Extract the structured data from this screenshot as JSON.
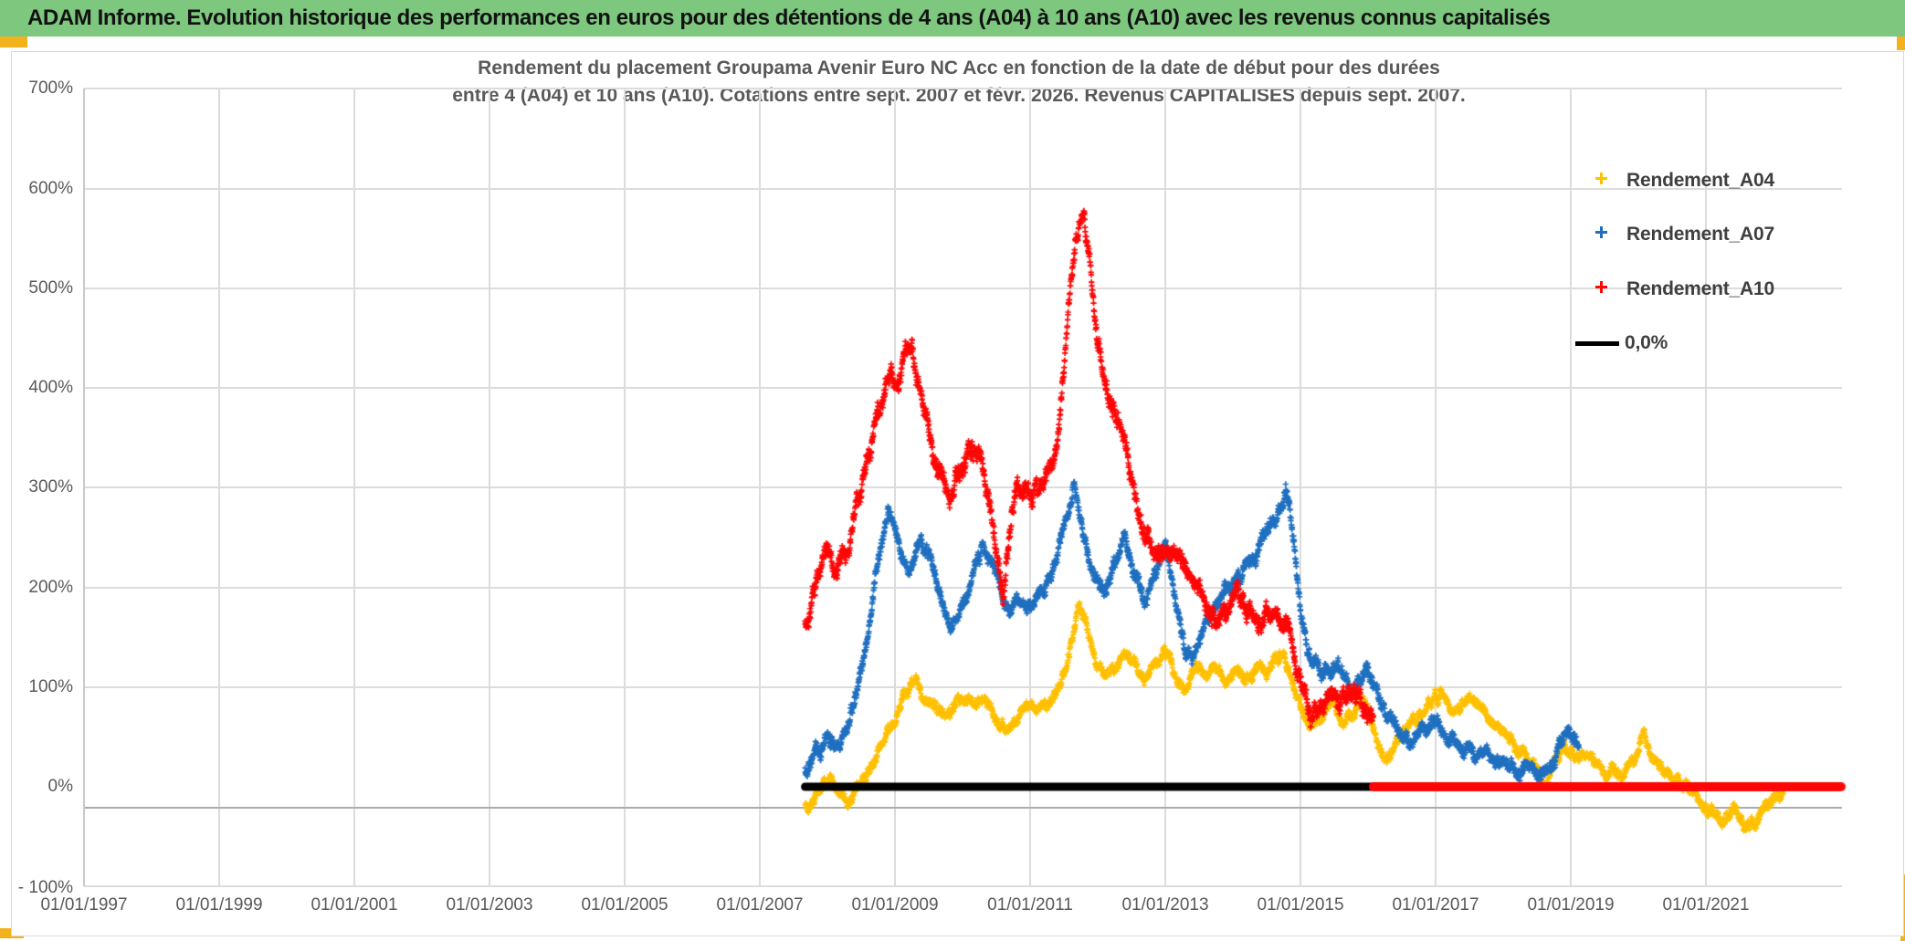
{
  "page": {
    "header_title": "ADAM Informe. Evolution historique des performances en euros pour des détentions de 4 ans (A04) à 10 ans (A10) avec les revenus connus capitalisés",
    "header_bg": "#7dc77f",
    "accent_color": "#f2b21e"
  },
  "chart": {
    "title_line1": "Rendement du placement Groupama Avenir Euro NC Acc en fonction de la date de début pour des durées",
    "title_line2": "entre 4 (A04) et 10 ans (A10). Cotations entre sept. 2007 et févr. 2026. Revenus CAPITALISES depuis sept. 2007.",
    "legend": [
      {
        "label": "Rendement_A04",
        "marker": "plus",
        "color": "#FFC000"
      },
      {
        "label": "Rendement_A07",
        "marker": "plus",
        "color": "#1f6fc0"
      },
      {
        "label": "Rendement_A10",
        "marker": "plus",
        "color": "#fe0606"
      },
      {
        "label": "0,0%",
        "marker": "line",
        "color": "#000000"
      }
    ]
  },
  "chart_data": {
    "type": "scatter",
    "title": "Rendement du placement Groupama Avenir Euro NC Acc en fonction de la date de début pour des durées entre 4 (A04) et 10 ans (A10). Cotations entre sept. 2007 et févr. 2026. Revenus CAPITALISES depuis sept. 2007.",
    "xlabel": "",
    "ylabel": "",
    "x_axis": {
      "tick_labels": [
        "01/01/1997",
        "01/01/1999",
        "01/01/2001",
        "01/01/2003",
        "01/01/2005",
        "01/01/2007",
        "01/01/2009",
        "01/01/2011",
        "01/01/2013",
        "01/01/2015",
        "01/01/2017",
        "01/01/2019",
        "01/01/2021"
      ],
      "tick_years": [
        1997,
        1999,
        2001,
        2003,
        2005,
        2007,
        2009,
        2011,
        2013,
        2015,
        2017,
        2019,
        2021
      ],
      "range_years": [
        1997,
        2023.03
      ],
      "grid": true
    },
    "y_axis": {
      "tick_labels": [
        "700%",
        "600%",
        "500%",
        "400%",
        "300%",
        "200%",
        "100%",
        "0%",
        "- 100%"
      ],
      "tick_values": [
        700,
        600,
        500,
        400,
        300,
        200,
        100,
        0,
        -100
      ],
      "range": [
        -100,
        700
      ],
      "unit": "percent",
      "gridline_values": [
        700,
        600,
        500,
        400,
        300,
        200,
        100,
        -100
      ]
    },
    "legend_position": "right-top",
    "series": [
      {
        "name": "Rendement_A04",
        "color": "#FFC000",
        "marker": "plus",
        "points_per_year": 260,
        "scatter_amp": 9,
        "anchors": [
          [
            2007.67,
            -18
          ],
          [
            2007.8,
            -10
          ],
          [
            2007.95,
            5
          ],
          [
            2008.05,
            8
          ],
          [
            2008.15,
            -5
          ],
          [
            2008.3,
            -14
          ],
          [
            2008.45,
            2
          ],
          [
            2008.6,
            18
          ],
          [
            2008.75,
            38
          ],
          [
            2008.9,
            55
          ],
          [
            2009.05,
            75
          ],
          [
            2009.2,
            95
          ],
          [
            2009.3,
            107
          ],
          [
            2009.45,
            88
          ],
          [
            2009.6,
            78
          ],
          [
            2009.75,
            72
          ],
          [
            2009.9,
            84
          ],
          [
            2010.05,
            80
          ],
          [
            2010.2,
            87
          ],
          [
            2010.35,
            90
          ],
          [
            2010.5,
            68
          ],
          [
            2010.65,
            52
          ],
          [
            2010.8,
            66
          ],
          [
            2010.95,
            76
          ],
          [
            2011.1,
            80
          ],
          [
            2011.25,
            87
          ],
          [
            2011.4,
            98
          ],
          [
            2011.55,
            122
          ],
          [
            2011.7,
            175
          ],
          [
            2011.8,
            170
          ],
          [
            2011.95,
            125
          ],
          [
            2012.1,
            108
          ],
          [
            2012.25,
            115
          ],
          [
            2012.4,
            140
          ],
          [
            2012.55,
            128
          ],
          [
            2012.7,
            112
          ],
          [
            2012.85,
            122
          ],
          [
            2013.0,
            133
          ],
          [
            2013.15,
            108
          ],
          [
            2013.3,
            97
          ],
          [
            2013.45,
            118
          ],
          [
            2013.6,
            112
          ],
          [
            2013.75,
            118
          ],
          [
            2013.9,
            110
          ],
          [
            2014.05,
            115
          ],
          [
            2014.2,
            112
          ],
          [
            2014.35,
            120
          ],
          [
            2014.5,
            115
          ],
          [
            2014.65,
            130
          ],
          [
            2014.75,
            137
          ],
          [
            2014.9,
            100
          ],
          [
            2015.05,
            72
          ],
          [
            2015.2,
            60
          ],
          [
            2015.35,
            78
          ],
          [
            2015.5,
            85
          ],
          [
            2015.6,
            62
          ],
          [
            2015.75,
            72
          ],
          [
            2015.9,
            80
          ],
          [
            2016.0,
            75
          ],
          [
            2016.15,
            45
          ],
          [
            2016.25,
            28
          ],
          [
            2016.4,
            40
          ],
          [
            2016.55,
            62
          ],
          [
            2016.7,
            72
          ],
          [
            2016.85,
            70
          ],
          [
            2017.0,
            88
          ],
          [
            2017.1,
            93
          ],
          [
            2017.25,
            72
          ],
          [
            2017.4,
            80
          ],
          [
            2017.55,
            92
          ],
          [
            2017.7,
            78
          ],
          [
            2017.85,
            65
          ],
          [
            2018.0,
            58
          ],
          [
            2018.15,
            42
          ],
          [
            2018.3,
            30
          ],
          [
            2018.45,
            22
          ],
          [
            2018.6,
            4
          ],
          [
            2018.75,
            25
          ],
          [
            2018.9,
            42
          ],
          [
            2019.05,
            35
          ],
          [
            2019.2,
            28
          ],
          [
            2019.35,
            20
          ],
          [
            2019.5,
            16
          ],
          [
            2019.65,
            14
          ],
          [
            2019.8,
            13
          ],
          [
            2019.95,
            25
          ],
          [
            2020.08,
            58
          ],
          [
            2020.2,
            30
          ],
          [
            2020.35,
            15
          ],
          [
            2020.5,
            8
          ],
          [
            2020.65,
            2
          ],
          [
            2020.8,
            -8
          ],
          [
            2020.95,
            -18
          ],
          [
            2021.1,
            -28
          ],
          [
            2021.25,
            -36
          ],
          [
            2021.4,
            -20
          ],
          [
            2021.55,
            -30
          ],
          [
            2021.7,
            -36
          ],
          [
            2021.85,
            -25
          ],
          [
            2022.0,
            -15
          ],
          [
            2022.15,
            -10
          ]
        ]
      },
      {
        "name": "Rendement_A07",
        "color": "#1f6fc0",
        "marker": "plus",
        "points_per_year": 260,
        "scatter_amp": 11,
        "anchors": [
          [
            2007.67,
            18
          ],
          [
            2007.85,
            35
          ],
          [
            2008.0,
            45
          ],
          [
            2008.15,
            40
          ],
          [
            2008.3,
            65
          ],
          [
            2008.45,
            95
          ],
          [
            2008.6,
            150
          ],
          [
            2008.75,
            225
          ],
          [
            2008.9,
            280
          ],
          [
            2009.0,
            265
          ],
          [
            2009.1,
            230
          ],
          [
            2009.2,
            215
          ],
          [
            2009.35,
            245
          ],
          [
            2009.5,
            230
          ],
          [
            2009.65,
            195
          ],
          [
            2009.8,
            172
          ],
          [
            2009.95,
            170
          ],
          [
            2010.1,
            200
          ],
          [
            2010.3,
            248
          ],
          [
            2010.45,
            225
          ],
          [
            2010.65,
            182
          ],
          [
            2010.8,
            188
          ],
          [
            2011.0,
            185
          ],
          [
            2011.15,
            195
          ],
          [
            2011.35,
            225
          ],
          [
            2011.5,
            260
          ],
          [
            2011.65,
            305
          ],
          [
            2011.8,
            255
          ],
          [
            2011.95,
            215
          ],
          [
            2012.1,
            195
          ],
          [
            2012.25,
            220
          ],
          [
            2012.4,
            248
          ],
          [
            2012.55,
            215
          ],
          [
            2012.7,
            192
          ],
          [
            2012.85,
            215
          ],
          [
            2013.0,
            240
          ],
          [
            2013.15,
            190
          ],
          [
            2013.3,
            140
          ],
          [
            2013.4,
            125
          ],
          [
            2013.55,
            160
          ],
          [
            2013.7,
            180
          ],
          [
            2013.85,
            195
          ],
          [
            2014.0,
            205
          ],
          [
            2014.15,
            220
          ],
          [
            2014.3,
            235
          ],
          [
            2014.5,
            255
          ],
          [
            2014.65,
            272
          ],
          [
            2014.8,
            295
          ],
          [
            2014.9,
            240
          ],
          [
            2015.0,
            175
          ],
          [
            2015.1,
            140
          ],
          [
            2015.2,
            120
          ],
          [
            2015.35,
            112
          ],
          [
            2015.5,
            120
          ],
          [
            2015.65,
            108
          ],
          [
            2015.8,
            95
          ],
          [
            2015.95,
            105
          ],
          [
            2016.05,
            115
          ],
          [
            2016.2,
            80
          ],
          [
            2016.35,
            68
          ],
          [
            2016.5,
            50
          ],
          [
            2016.6,
            42
          ],
          [
            2016.75,
            58
          ],
          [
            2016.9,
            63
          ],
          [
            2017.05,
            66
          ],
          [
            2017.2,
            50
          ],
          [
            2017.35,
            42
          ],
          [
            2017.5,
            38
          ],
          [
            2017.65,
            33
          ],
          [
            2017.8,
            30
          ],
          [
            2017.95,
            26
          ],
          [
            2018.1,
            20
          ],
          [
            2018.25,
            10
          ],
          [
            2018.4,
            16
          ],
          [
            2018.55,
            6
          ],
          [
            2018.7,
            22
          ],
          [
            2018.85,
            45
          ],
          [
            2018.95,
            56
          ],
          [
            2019.05,
            44
          ],
          [
            2019.12,
            38
          ]
        ]
      },
      {
        "name": "Rendement_A10",
        "color": "#fe0606",
        "marker": "plus",
        "points_per_year": 260,
        "scatter_amp": 15,
        "anchors": [
          [
            2007.67,
            160
          ],
          [
            2007.8,
            190
          ],
          [
            2007.95,
            235
          ],
          [
            2008.1,
            215
          ],
          [
            2008.25,
            240
          ],
          [
            2008.4,
            270
          ],
          [
            2008.55,
            300
          ],
          [
            2008.7,
            360
          ],
          [
            2008.85,
            400
          ],
          [
            2008.95,
            415
          ],
          [
            2009.05,
            400
          ],
          [
            2009.15,
            440
          ],
          [
            2009.25,
            445
          ],
          [
            2009.35,
            405
          ],
          [
            2009.5,
            355
          ],
          [
            2009.65,
            315
          ],
          [
            2009.8,
            290
          ],
          [
            2009.95,
            320
          ],
          [
            2010.1,
            340
          ],
          [
            2010.25,
            325
          ],
          [
            2010.4,
            295
          ],
          [
            2010.5,
            255
          ],
          [
            2010.6,
            190
          ],
          [
            2010.7,
            255
          ],
          [
            2010.8,
            305
          ],
          [
            2010.95,
            295
          ],
          [
            2011.1,
            300
          ],
          [
            2011.25,
            315
          ],
          [
            2011.4,
            345
          ],
          [
            2011.5,
            430
          ],
          [
            2011.6,
            500
          ],
          [
            2011.7,
            560
          ],
          [
            2011.8,
            575
          ],
          [
            2011.9,
            520
          ],
          [
            2012.0,
            450
          ],
          [
            2012.1,
            405
          ],
          [
            2012.25,
            375
          ],
          [
            2012.4,
            340
          ],
          [
            2012.55,
            290
          ],
          [
            2012.7,
            255
          ],
          [
            2012.85,
            230
          ],
          [
            2013.0,
            220
          ],
          [
            2013.15,
            235
          ],
          [
            2013.3,
            215
          ],
          [
            2013.45,
            200
          ],
          [
            2013.6,
            180
          ],
          [
            2013.75,
            168
          ],
          [
            2013.9,
            175
          ],
          [
            2014.05,
            190
          ],
          [
            2014.2,
            172
          ],
          [
            2014.35,
            165
          ],
          [
            2014.5,
            170
          ],
          [
            2014.65,
            175
          ],
          [
            2014.8,
            160
          ],
          [
            2014.9,
            140
          ],
          [
            2015.0,
            110
          ],
          [
            2015.1,
            85
          ],
          [
            2015.2,
            68
          ],
          [
            2015.3,
            80
          ],
          [
            2015.45,
            92
          ],
          [
            2015.6,
            88
          ],
          [
            2015.7,
            98
          ],
          [
            2015.8,
            90
          ],
          [
            2015.9,
            80
          ],
          [
            2016.0,
            72
          ],
          [
            2016.08,
            66
          ]
        ]
      }
    ],
    "zero_line": {
      "name": "0,0%",
      "value": 0,
      "segments": [
        {
          "x_years": [
            2007.67,
            2016.08
          ],
          "color": "#000000",
          "width": 9
        },
        {
          "x_years": [
            2016.08,
            2023.0
          ],
          "color": "#fe0606",
          "width": 10
        }
      ]
    }
  }
}
